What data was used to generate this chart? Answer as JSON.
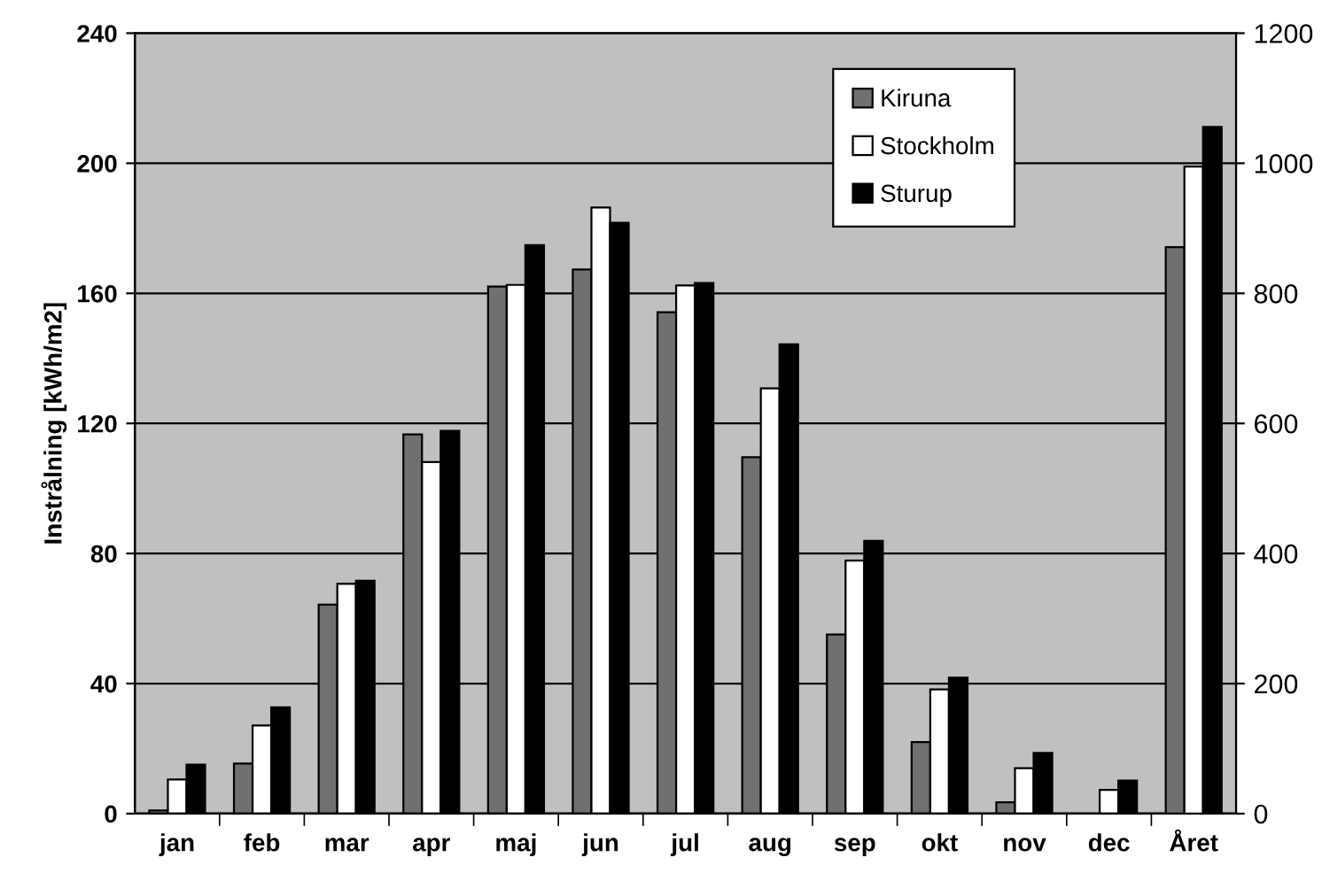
{
  "chart_data": {
    "type": "bar",
    "ylabel": "Instrålning [kWh/m2]",
    "categories": [
      "jan",
      "feb",
      "mar",
      "apr",
      "maj",
      "jun",
      "jul",
      "aug",
      "sep",
      "okt",
      "nov",
      "dec",
      "Året"
    ],
    "series": [
      {
        "name": "Kiruna",
        "color": "#707070",
        "values": [
          1,
          15.4,
          64.3,
          116.6,
          162.1,
          167.3,
          154.2,
          109.6,
          55.1,
          22.0,
          3.5,
          null,
          null
        ]
      },
      {
        "name": "Stockholm",
        "color": "#ffffff",
        "values": [
          10.5,
          27.1,
          70.7,
          108.1,
          162.6,
          186.4,
          162.4,
          130.8,
          77.8,
          38.2,
          14.0,
          7.3,
          null
        ]
      },
      {
        "name": "Sturup",
        "color": "#000000",
        "values": [
          15.1,
          32.7,
          71.6,
          117.7,
          174.8,
          181.7,
          163.2,
          144.3,
          83.9,
          41.8,
          18.7,
          10.2,
          null
        ]
      },
      {
        "color": "#707070",
        "axis": "y2",
        "values": [
          null,
          null,
          null,
          null,
          null,
          null,
          null,
          null,
          null,
          null,
          null,
          null,
          871
        ]
      },
      {
        "color": "#ffffff",
        "axis": "y2",
        "values": [
          null,
          null,
          null,
          null,
          null,
          null,
          null,
          null,
          null,
          null,
          null,
          null,
          995
        ]
      },
      {
        "color": "#000000",
        "axis": "y2",
        "values": [
          null,
          null,
          null,
          null,
          null,
          null,
          null,
          null,
          null,
          null,
          null,
          null,
          1056
        ]
      }
    ],
    "ylim": [
      0,
      240
    ],
    "yticks": [
      0,
      40,
      80,
      120,
      160,
      200,
      240
    ],
    "y2lim": [
      0,
      1200
    ],
    "y2ticks": [
      0,
      200,
      400,
      600,
      800,
      1000,
      1200
    ],
    "grid": "y",
    "legend": "top right"
  }
}
